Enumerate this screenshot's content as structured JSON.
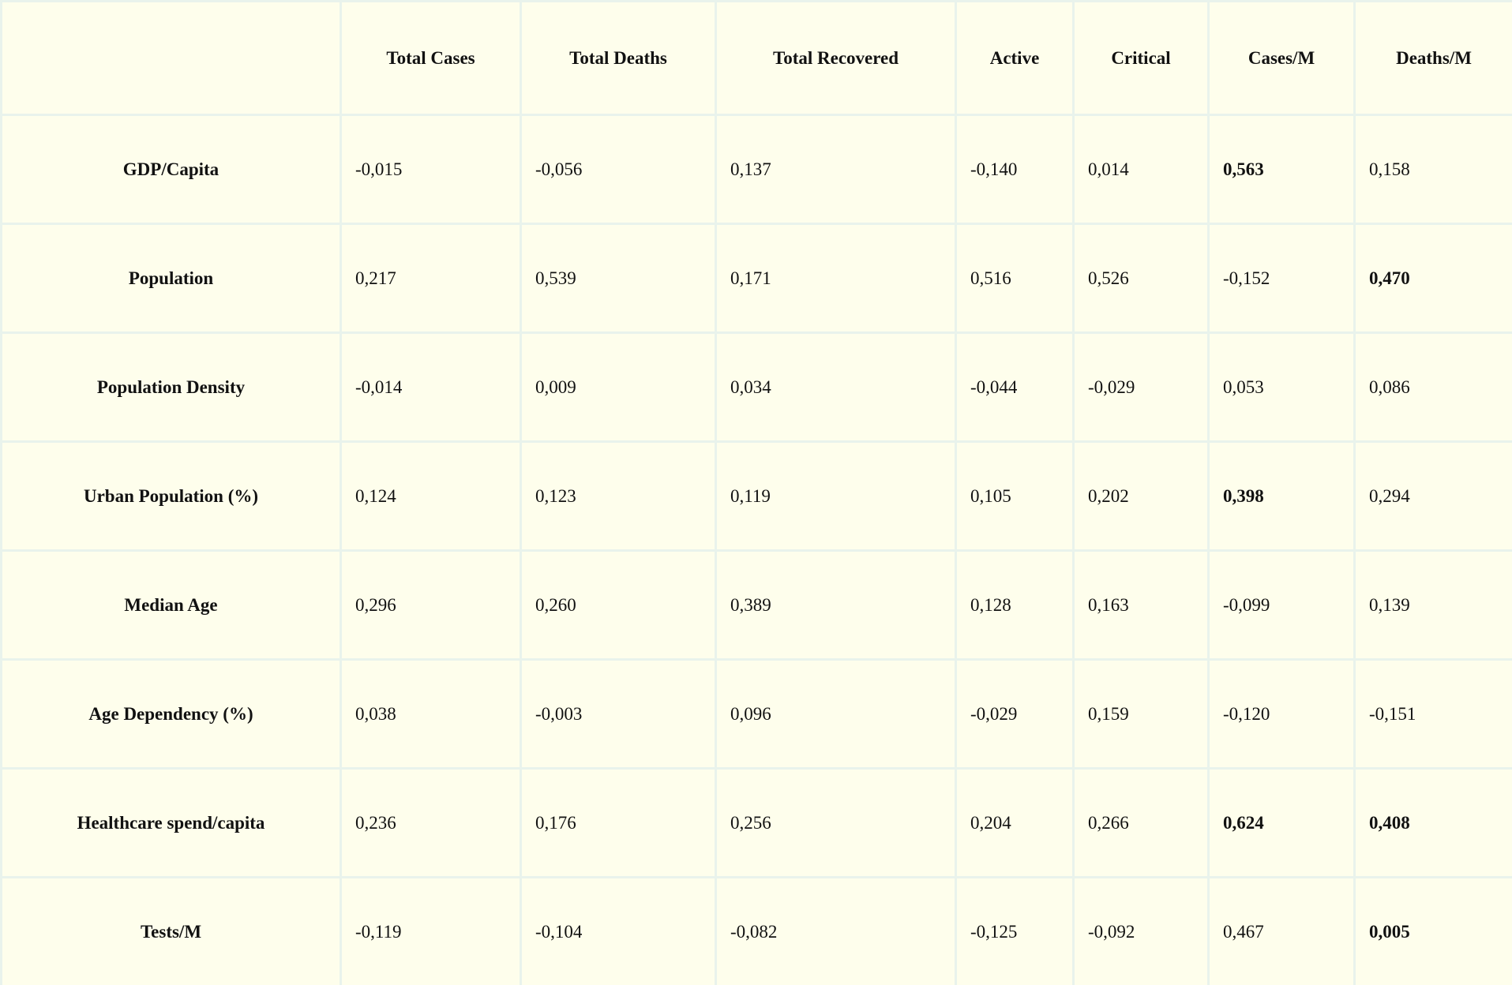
{
  "table": {
    "header": [
      "Total Cases",
      "Total Deaths",
      "Total Recovered",
      "Active",
      "Critical",
      "Cases/M",
      "Deaths/M"
    ],
    "rows": [
      {
        "label": "GDP/Capita",
        "cells": [
          "-0,015",
          "-0,056",
          "0,137",
          "-0,140",
          "0,014",
          "0,563",
          "0,158"
        ],
        "bold": [
          5
        ]
      },
      {
        "label": "Population",
        "cells": [
          "0,217",
          "0,539",
          "0,171",
          "0,516",
          "0,526",
          "-0,152",
          "0,470"
        ],
        "bold": [
          6
        ]
      },
      {
        "label": "Population Density",
        "cells": [
          "-0,014",
          "0,009",
          "0,034",
          "-0,044",
          "-0,029",
          "0,053",
          "0,086"
        ],
        "bold": []
      },
      {
        "label": "Urban Population (%)",
        "cells": [
          "0,124",
          "0,123",
          "0,119",
          "0,105",
          "0,202",
          "0,398",
          "0,294"
        ],
        "bold": [
          5
        ]
      },
      {
        "label": "Median Age",
        "cells": [
          "0,296",
          "0,260",
          "0,389",
          "0,128",
          "0,163",
          "-0,099",
          "0,139"
        ],
        "bold": []
      },
      {
        "label": "Age Dependency (%)",
        "cells": [
          "0,038",
          "-0,003",
          "0,096",
          "-0,029",
          "0,159",
          "-0,120",
          "-0,151"
        ],
        "bold": []
      },
      {
        "label": "Healthcare spend/capita",
        "cells": [
          "0,236",
          "0,176",
          "0,256",
          "0,204",
          "0,266",
          "0,624",
          "0,408"
        ],
        "bold": [
          5,
          6
        ]
      },
      {
        "label": "Tests/M",
        "cells": [
          "-0,119",
          "-0,104",
          "-0,082",
          "-0,125",
          "-0,092",
          "0,467",
          "0,005"
        ],
        "bold": [
          6
        ]
      }
    ]
  }
}
